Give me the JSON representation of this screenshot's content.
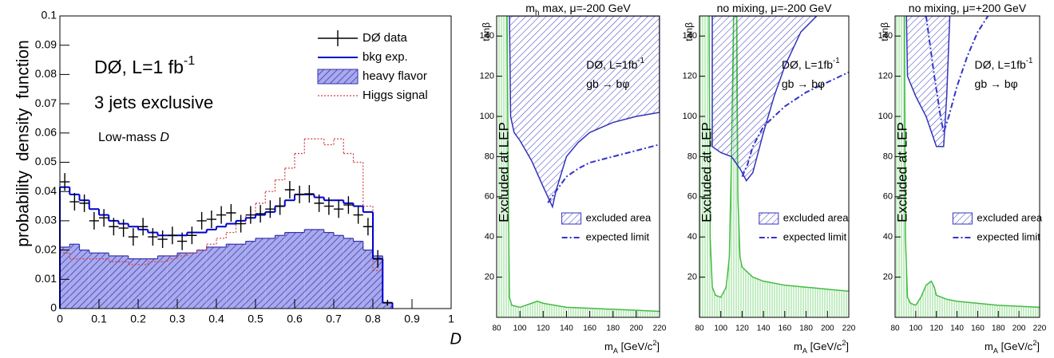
{
  "chart_data": [
    {
      "type": "histogram",
      "ylabel": "probability density function",
      "xlabel": "D",
      "xlim": [
        0,
        1
      ],
      "ylim": [
        0,
        0.1
      ],
      "xticks": [
        0,
        0.1,
        0.2,
        0.3,
        0.4,
        0.5,
        0.6,
        0.7,
        0.8,
        0.9,
        1
      ],
      "yticks": [
        0,
        0.01,
        0.02,
        0.03,
        0.04,
        0.05,
        0.06,
        0.07,
        0.08,
        0.09,
        0.1
      ],
      "bins": [
        0,
        0.025,
        0.05,
        0.075,
        0.1,
        0.125,
        0.15,
        0.175,
        0.2,
        0.225,
        0.25,
        0.275,
        0.3,
        0.325,
        0.35,
        0.375,
        0.4,
        0.425,
        0.45,
        0.475,
        0.5,
        0.525,
        0.55,
        0.575,
        0.6,
        0.625,
        0.65,
        0.675,
        0.7,
        0.725,
        0.75,
        0.775,
        0.8,
        0.825,
        0.85
      ],
      "annotations": [
        {
          "parts": [
            "DØ, L=1 fb",
            {
              "t": "-1",
              "pos": "sup"
            }
          ]
        },
        {
          "parts": [
            "3 jets exclusive"
          ]
        },
        {
          "parts": [
            "Low-mass ",
            {
              "t": "D",
              "pos": "italic"
            }
          ]
        }
      ],
      "series": [
        {
          "name": "heavy flavor",
          "style": "filled",
          "color": "#3333aa",
          "values": [
            0.021,
            0.022,
            0.02,
            0.019,
            0.019,
            0.018,
            0.018,
            0.017,
            0.017,
            0.017,
            0.018,
            0.018,
            0.019,
            0.019,
            0.02,
            0.021,
            0.021,
            0.022,
            0.022,
            0.023,
            0.024,
            0.024,
            0.025,
            0.026,
            0.026,
            0.027,
            0.027,
            0.026,
            0.025,
            0.024,
            0.023,
            0.02,
            0.018,
            0.002
          ]
        },
        {
          "name": "Higgs signal",
          "style": "dotted",
          "color": "#d04040",
          "values": [
            0.019,
            0.017,
            0.017,
            0.017,
            0.017,
            0.016,
            0.016,
            0.015,
            0.015,
            0.016,
            0.016,
            0.017,
            0.018,
            0.019,
            0.02,
            0.022,
            0.024,
            0.026,
            0.029,
            0.032,
            0.036,
            0.04,
            0.044,
            0.048,
            0.053,
            0.058,
            0.058,
            0.056,
            0.058,
            0.053,
            0.05,
            0.035,
            0.013,
            0.002
          ]
        },
        {
          "name": "bkg exp.",
          "style": "step",
          "color": "#0000cc",
          "values": [
            0.0415,
            0.039,
            0.037,
            0.034,
            0.032,
            0.03,
            0.029,
            0.028,
            0.027,
            0.026,
            0.025,
            0.025,
            0.025,
            0.026,
            0.026,
            0.027,
            0.028,
            0.029,
            0.03,
            0.031,
            0.032,
            0.033,
            0.035,
            0.037,
            0.039,
            0.039,
            0.038,
            0.037,
            0.037,
            0.036,
            0.035,
            0.033,
            0.017,
            0.002
          ]
        },
        {
          "name": "DØ data",
          "style": "points",
          "color": "#000000",
          "values": [
            0.0433,
            0.0365,
            0.036,
            0.03,
            0.031,
            0.028,
            0.0275,
            0.0245,
            0.028,
            0.0245,
            0.0237,
            0.025,
            0.023,
            0.025,
            0.03,
            0.0305,
            0.032,
            0.0327,
            0.029,
            0.032,
            0.0324,
            0.034,
            0.035,
            0.0406,
            0.039,
            0.0392,
            0.036,
            0.035,
            0.034,
            0.0354,
            0.032,
            0.028,
            0.017,
            0.002
          ],
          "errors": [
            0.003,
            0.003,
            0.003,
            0.003,
            0.003,
            0.003,
            0.003,
            0.003,
            0.003,
            0.003,
            0.003,
            0.003,
            0.003,
            0.003,
            0.003,
            0.003,
            0.003,
            0.003,
            0.003,
            0.003,
            0.003,
            0.003,
            0.003,
            0.003,
            0.003,
            0.003,
            0.003,
            0.003,
            0.003,
            0.003,
            0.003,
            0.003,
            0.003,
            0.001
          ]
        }
      ]
    },
    {
      "type": "exclusion",
      "title": {
        "parts": [
          "m",
          {
            "t": "h",
            "pos": "sub"
          },
          " max, μ=-200 GeV"
        ]
      },
      "ylabel": "tanβ",
      "xlabel": {
        "parts": [
          "m",
          {
            "t": "A",
            "pos": "sub"
          },
          " [GeV/c",
          {
            "t": "2",
            "pos": "sup"
          },
          "]"
        ]
      },
      "xlim": [
        80,
        220
      ],
      "ylim": [
        0,
        150
      ],
      "xticks": [
        80,
        100,
        120,
        140,
        160,
        180,
        200,
        220
      ],
      "yticks": [
        20,
        40,
        60,
        80,
        100,
        120,
        140
      ],
      "annotations": [
        {
          "parts": [
            "DØ, L=1fb",
            {
              "t": "-1",
              "pos": "sup"
            }
          ]
        },
        {
          "parts": [
            "gb → bφ"
          ]
        }
      ],
      "lep_label": "Excluded at LEP",
      "lep": {
        "color": "#44bb44",
        "x": [
          89,
          90,
          91,
          93,
          100,
          110,
          115,
          120,
          140,
          160,
          180,
          200,
          220
        ],
        "values": [
          150,
          60,
          10,
          6,
          5,
          7,
          8,
          7,
          5,
          4.5,
          4,
          3.5,
          3
        ]
      },
      "series": [
        {
          "name": "excluded area",
          "style": "hatched",
          "color": "#3333bb",
          "x": [
            91,
            92,
            95,
            100,
            110,
            120,
            128,
            131,
            140,
            150,
            160,
            180,
            200,
            220,
            220
          ],
          "values": [
            150,
            100,
            92,
            88,
            78,
            65,
            55,
            63,
            80,
            87,
            92,
            97,
            100,
            102,
            150
          ]
        },
        {
          "name": "expected limit",
          "style": "dashdot",
          "color": "#3333cc",
          "x": [
            124,
            130,
            140,
            150,
            160,
            180,
            200,
            220
          ],
          "values": [
            57,
            62,
            70,
            74,
            77,
            80,
            83,
            86
          ]
        }
      ]
    },
    {
      "type": "exclusion",
      "title": {
        "parts": [
          "no mixing, μ=-200 GeV"
        ]
      },
      "ylabel": "tanβ",
      "xlabel": {
        "parts": [
          "m",
          {
            "t": "A",
            "pos": "sub"
          },
          " [GeV/c",
          {
            "t": "2",
            "pos": "sup"
          },
          "]"
        ]
      },
      "xlim": [
        80,
        220
      ],
      "ylim": [
        0,
        150
      ],
      "xticks": [
        80,
        100,
        120,
        140,
        160,
        180,
        200,
        220
      ],
      "yticks": [
        20,
        40,
        60,
        80,
        100,
        120,
        140
      ],
      "annotations": [
        {
          "parts": [
            "DØ, L=1fb",
            {
              "t": "-1",
              "pos": "sup"
            }
          ]
        },
        {
          "parts": [
            "gb → bφ"
          ]
        }
      ],
      "lep_label": "Excluded at LEP",
      "lep": {
        "color": "#44bb44",
        "x": [
          89,
          90,
          92,
          95,
          100,
          105,
          108,
          110,
          112,
          113,
          115,
          116,
          118,
          120,
          130,
          140,
          160,
          180,
          200,
          220
        ],
        "values": [
          150,
          40,
          15,
          11,
          10,
          15,
          30,
          80,
          150,
          150,
          150,
          60,
          30,
          25,
          20,
          18,
          16,
          15,
          14,
          13
        ]
      },
      "series": [
        {
          "name": "excluded area",
          "style": "hatched",
          "color": "#3333bb",
          "x": [
            92,
            92,
            100,
            110,
            118,
            124,
            130,
            140,
            150,
            160,
            175,
            190
          ],
          "values": [
            150,
            85,
            82,
            80,
            74,
            68,
            72,
            92,
            110,
            125,
            142,
            150
          ]
        },
        {
          "name": "expected limit",
          "style": "dashdot",
          "color": "#3333cc",
          "x": [
            120,
            125,
            130,
            140,
            150,
            160,
            180,
            200,
            220
          ],
          "values": [
            70,
            76,
            85,
            95,
            100,
            105,
            112,
            117,
            122
          ]
        }
      ]
    },
    {
      "type": "exclusion",
      "title": {
        "parts": [
          "no mixing, μ=+200 GeV"
        ]
      },
      "ylabel": "tanβ",
      "xlabel": {
        "parts": [
          "m",
          {
            "t": "A",
            "pos": "sub"
          },
          " [GeV/c",
          {
            "t": "2",
            "pos": "sup"
          },
          "]"
        ]
      },
      "xlim": [
        80,
        220
      ],
      "ylim": [
        0,
        150
      ],
      "xticks": [
        80,
        100,
        120,
        140,
        160,
        180,
        200,
        220
      ],
      "yticks": [
        20,
        40,
        60,
        80,
        100,
        120,
        140
      ],
      "annotations": [
        {
          "parts": [
            "DØ, L=1fb",
            {
              "t": "-1",
              "pos": "sup"
            }
          ]
        },
        {
          "parts": [
            "gb → bφ"
          ]
        }
      ],
      "lep_label": "Excluded at LEP",
      "lep": {
        "color": "#44bb44",
        "x": [
          89,
          90,
          92,
          95,
          100,
          105,
          110,
          115,
          118,
          120,
          130,
          140,
          160,
          180,
          200,
          220
        ],
        "values": [
          150,
          40,
          10,
          7,
          6,
          10,
          16,
          18,
          15,
          11,
          9,
          8,
          7,
          6,
          5.5,
          5
        ]
      },
      "series": [
        {
          "name": "excluded area",
          "style": "hatched",
          "color": "#3333bb",
          "x": [
            91,
            92,
            100,
            110,
            120,
            127,
            130,
            133
          ],
          "values": [
            150,
            120,
            110,
            100,
            85,
            85,
            110,
            150
          ]
        },
        {
          "name": "expected limit",
          "style": "dashdot",
          "color": "#3333cc",
          "x": [
            110,
            118,
            124,
            127,
            132,
            140,
            150,
            160,
            170
          ],
          "values": [
            150,
            120,
            100,
            92,
            100,
            115,
            130,
            142,
            150
          ]
        }
      ]
    }
  ]
}
